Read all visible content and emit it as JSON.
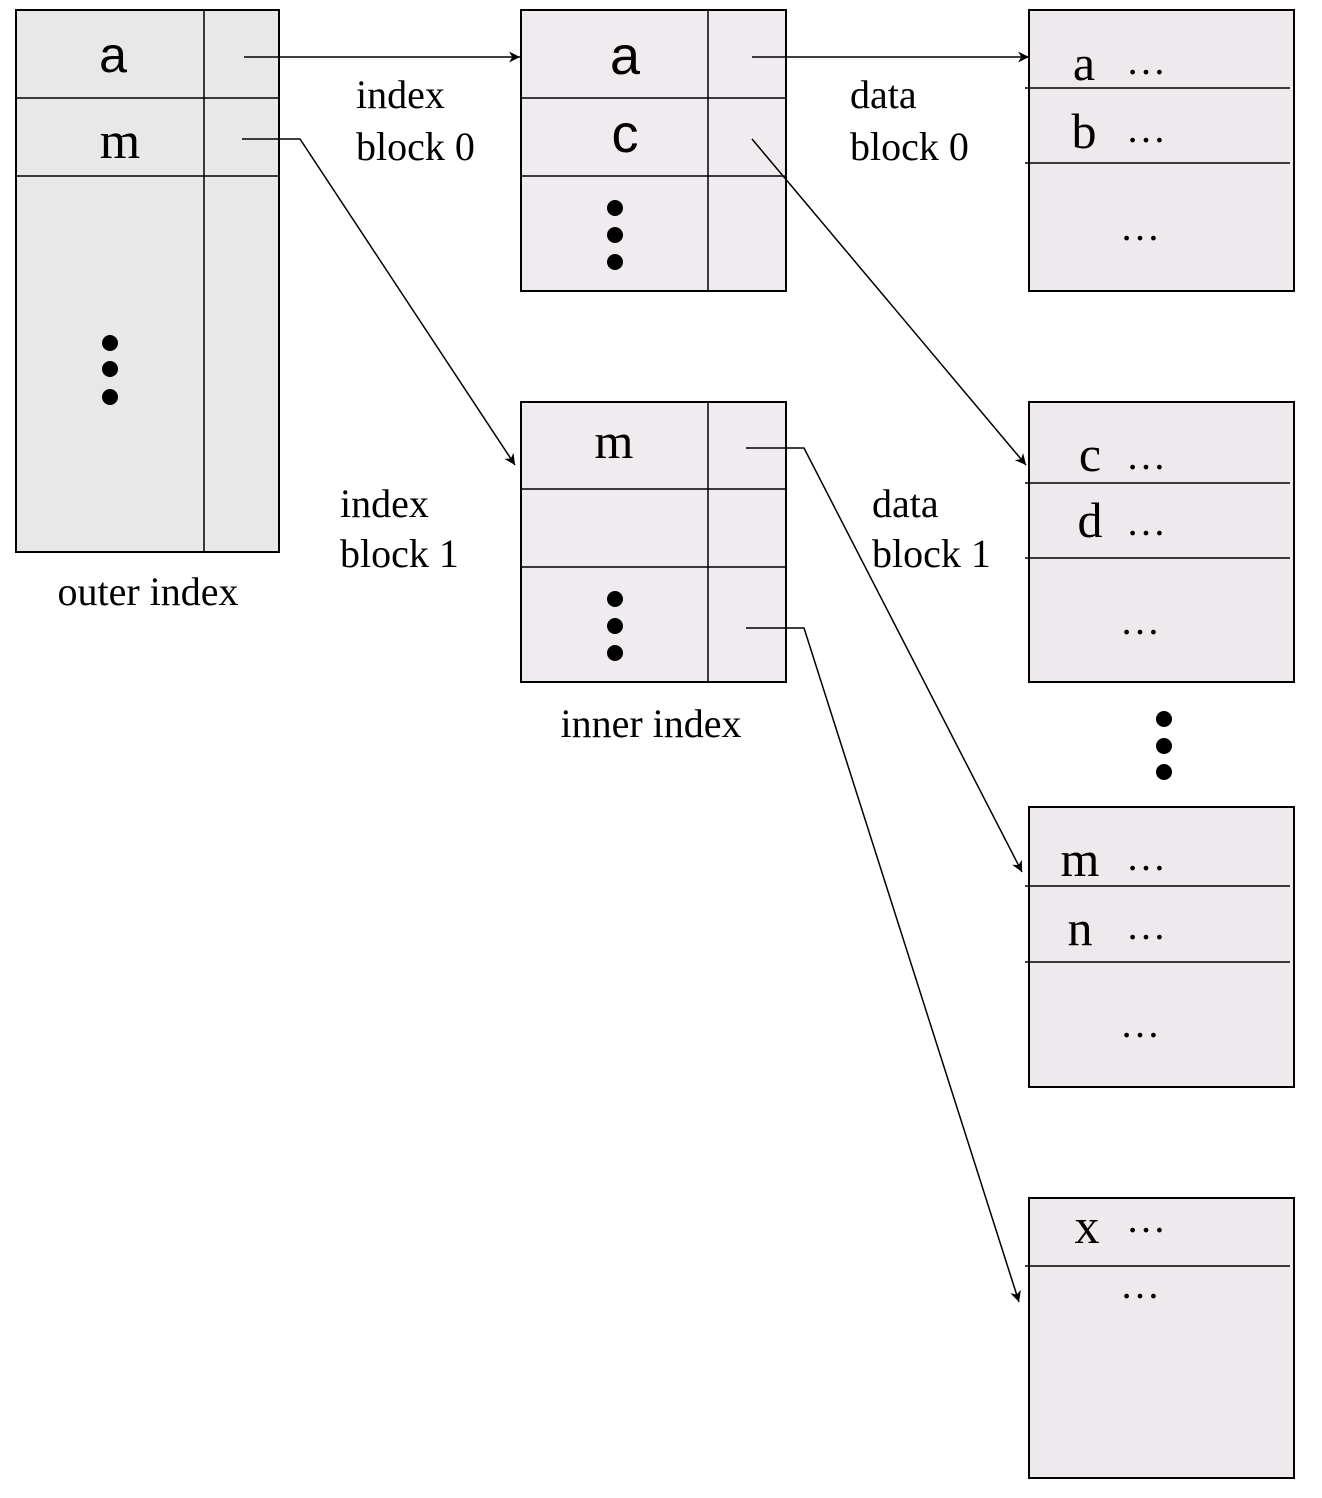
{
  "colors": {
    "outer_fill": "#e8e8e8",
    "inner_fill": "#efebee",
    "data_fill": "#ede9ec",
    "stroke": "#000000"
  },
  "outer_index": {
    "caption": "outer index",
    "keys": [
      "a",
      "m"
    ],
    "more": "more-entries-dots"
  },
  "index_block_0": {
    "label_line1": "index",
    "label_line2": "block 0",
    "keys": [
      "a",
      "c"
    ]
  },
  "index_block_1": {
    "label_line1": "index",
    "label_line2": "block 1",
    "keys": [
      "m"
    ],
    "caption": "inner index"
  },
  "data_block_0": {
    "label_line1": "data",
    "label_line2": "block 0",
    "records": [
      {
        "key": "a",
        "rest": "…"
      },
      {
        "key": "b",
        "rest": "…"
      }
    ],
    "more": "…"
  },
  "data_block_1": {
    "label_line1": "data",
    "label_line2": "block 1",
    "records": [
      {
        "key": "c",
        "rest": "…"
      },
      {
        "key": "d",
        "rest": "…"
      }
    ],
    "more": "…"
  },
  "data_block_m": {
    "records": [
      {
        "key": "m",
        "rest": "…"
      },
      {
        "key": "n",
        "rest": "…"
      }
    ],
    "more": "…"
  },
  "data_block_x": {
    "records": [
      {
        "key": "x",
        "rest": "…"
      }
    ],
    "more": "…"
  }
}
